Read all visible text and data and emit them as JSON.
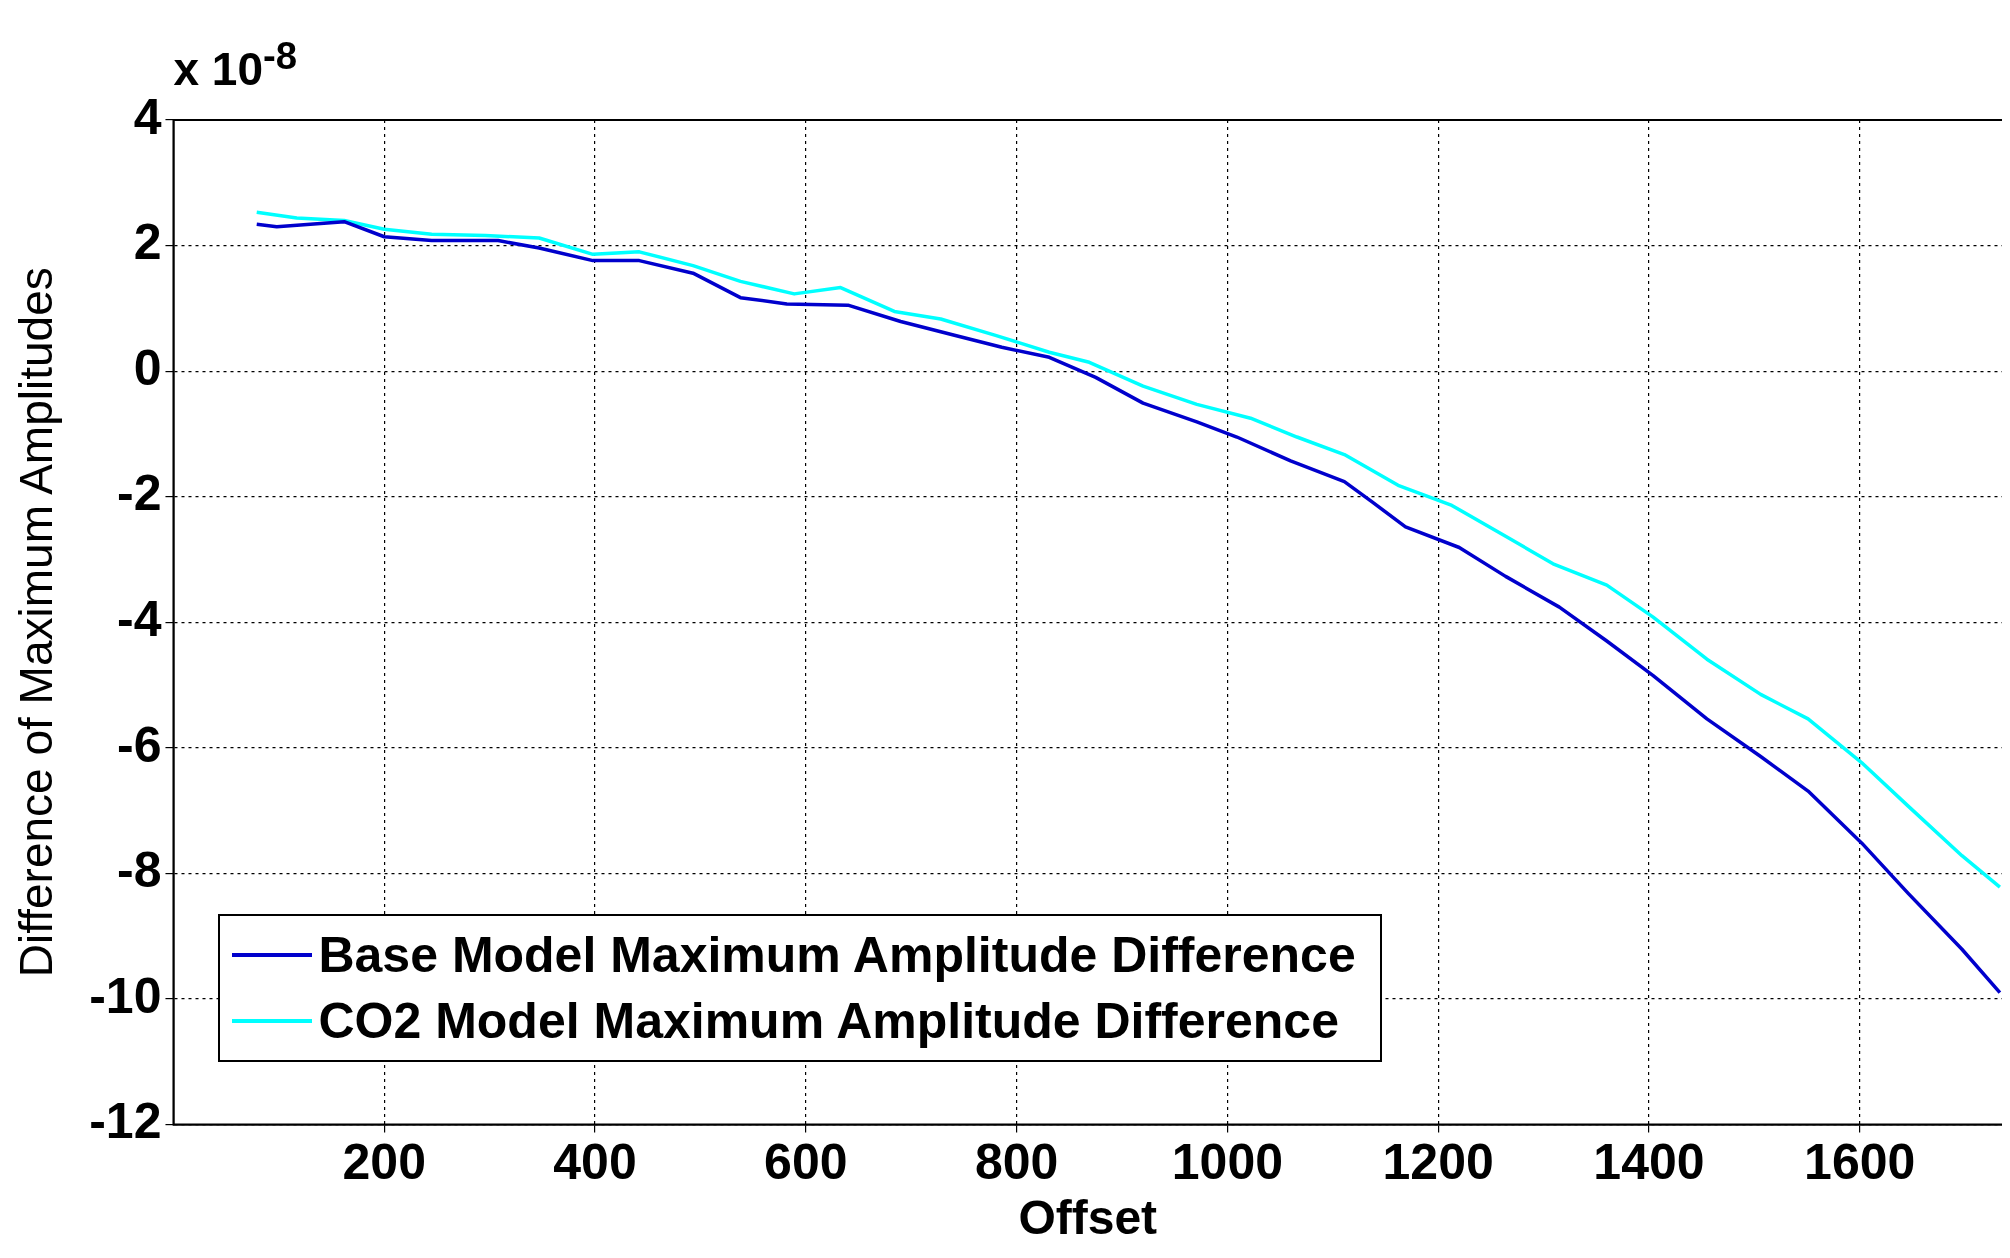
{
  "chart_data": {
    "type": "line",
    "xlabel": "Offset",
    "ylabel": "Difference of Maximum Amplitudes",
    "annotations": [
      "x 10$^{-8}$"
    ],
    "xlim": [
      0,
      1735
    ],
    "xticks": [
      200,
      400,
      600,
      800,
      1000,
      1200,
      1400,
      1600
    ],
    "ylim": [
      -12,
      4
    ],
    "yticks": [
      -12,
      -10,
      -8,
      -6,
      -4,
      -2,
      0,
      2,
      4
    ],
    "grid": true,
    "legend": "bottom left",
    "marker": "none",
    "line_style": "solid",
    "series": [
      {
        "name": "Base Model Maximum Amplitude Difference",
        "color": "#0000cc",
        "x": [
          79,
          98,
          162,
          200,
          245,
          308,
          347,
          398,
          442,
          493,
          538,
          582,
          640,
          690,
          741,
          786,
          831,
          875,
          920,
          971,
          1009,
          1060,
          1111,
          1137,
          1169,
          1220,
          1264,
          1315,
          1360,
          1404,
          1455,
          1506,
          1551,
          1602,
          1646,
          1697,
          1733
        ],
        "values": [
          2.34,
          2.3,
          2.38,
          2.14,
          2.08,
          2.08,
          1.96,
          1.76,
          1.76,
          1.56,
          1.17,
          1.07,
          1.05,
          0.79,
          0.57,
          0.38,
          0.22,
          -0.1,
          -0.51,
          -0.81,
          -1.05,
          -1.43,
          -1.76,
          -2.08,
          -2.48,
          -2.81,
          -3.27,
          -3.76,
          -4.3,
          -4.85,
          -5.54,
          -6.14,
          -6.69,
          -7.52,
          -8.32,
          -9.21,
          -9.9
        ]
      },
      {
        "name": "CO2 Model Maximum Amplitude Difference",
        "color": "#00ffff",
        "x": [
          79,
          117,
          162,
          200,
          245,
          296,
          347,
          398,
          442,
          493,
          538,
          589,
          633,
          684,
          728,
          780,
          831,
          869,
          920,
          971,
          1022,
          1066,
          1111,
          1162,
          1213,
          1264,
          1309,
          1360,
          1404,
          1455,
          1506,
          1551,
          1602,
          1646,
          1697,
          1733
        ],
        "values": [
          2.53,
          2.44,
          2.4,
          2.26,
          2.18,
          2.16,
          2.12,
          1.86,
          1.9,
          1.68,
          1.43,
          1.23,
          1.33,
          0.95,
          0.83,
          0.57,
          0.3,
          0.14,
          -0.24,
          -0.53,
          -0.75,
          -1.05,
          -1.33,
          -1.82,
          -2.14,
          -2.63,
          -3.07,
          -3.41,
          -3.92,
          -4.59,
          -5.15,
          -5.54,
          -6.24,
          -6.93,
          -7.72,
          -8.22
        ]
      }
    ]
  }
}
